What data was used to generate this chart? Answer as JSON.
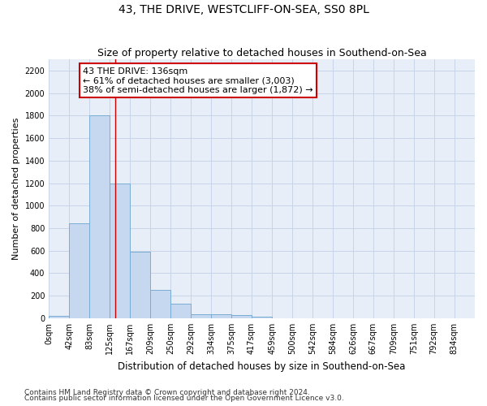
{
  "title": "43, THE DRIVE, WESTCLIFF-ON-SEA, SS0 8PL",
  "subtitle": "Size of property relative to detached houses in Southend-on-Sea",
  "xlabel": "Distribution of detached houses by size in Southend-on-Sea",
  "ylabel": "Number of detached properties",
  "footnote1": "Contains HM Land Registry data © Crown copyright and database right 2024.",
  "footnote2": "Contains public sector information licensed under the Open Government Licence v3.0.",
  "annotation_line1": "43 THE DRIVE: 136sqm",
  "annotation_line2": "← 61% of detached houses are smaller (3,003)",
  "annotation_line3": "38% of semi-detached houses are larger (1,872) →",
  "bar_left_edges": [
    0,
    42,
    83,
    125,
    167,
    209,
    250,
    292,
    334,
    375,
    417,
    459,
    500,
    542,
    584,
    626,
    667,
    709,
    751,
    792
  ],
  "bar_widths": [
    42,
    41,
    42,
    42,
    42,
    41,
    42,
    42,
    41,
    42,
    42,
    41,
    42,
    42,
    42,
    41,
    42,
    42,
    41,
    42
  ],
  "bar_heights": [
    20,
    845,
    1800,
    1200,
    590,
    255,
    130,
    35,
    35,
    25,
    15,
    0,
    0,
    0,
    0,
    0,
    0,
    0,
    0,
    0
  ],
  "bar_color": "#c5d8f0",
  "bar_edge_color": "#7aadd4",
  "grid_color": "#c8d4e8",
  "background_color": "#e8eef8",
  "property_line_x": 136,
  "property_line_color": "#cc0000",
  "ylim": [
    0,
    2300
  ],
  "xlim": [
    0,
    876
  ],
  "tick_labels": [
    "0sqm",
    "42sqm",
    "83sqm",
    "125sqm",
    "167sqm",
    "209sqm",
    "250sqm",
    "292sqm",
    "334sqm",
    "375sqm",
    "417sqm",
    "459sqm",
    "500sqm",
    "542sqm",
    "584sqm",
    "626sqm",
    "667sqm",
    "709sqm",
    "751sqm",
    "792sqm",
    "834sqm"
  ],
  "tick_positions": [
    0,
    42,
    83,
    125,
    167,
    209,
    250,
    292,
    334,
    375,
    417,
    459,
    500,
    542,
    584,
    626,
    667,
    709,
    751,
    792,
    834
  ],
  "ytick_values": [
    0,
    200,
    400,
    600,
    800,
    1000,
    1200,
    1400,
    1600,
    1800,
    2000,
    2200
  ],
  "title_fontsize": 10,
  "subtitle_fontsize": 9,
  "xlabel_fontsize": 8.5,
  "ylabel_fontsize": 8,
  "tick_fontsize": 7,
  "annotation_fontsize": 8,
  "footnote_fontsize": 6.5
}
